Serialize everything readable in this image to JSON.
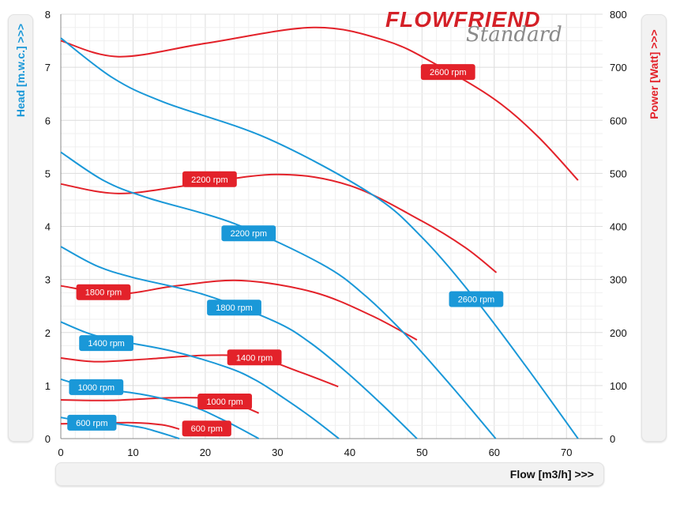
{
  "logo": {
    "text_main": "FLOWFRIEND",
    "text_sub": "Standard"
  },
  "chart_data": {
    "type": "line",
    "title": "",
    "xlabel": "Flow [m3/h] >>>",
    "ylabel": "Head [m.w.c.] >>>",
    "y2label": "Power [Watt] >>>",
    "xlim": [
      0,
      75
    ],
    "ylim": [
      0,
      8
    ],
    "y2lim": [
      0,
      800
    ],
    "xticks": [
      0,
      10,
      20,
      30,
      40,
      50,
      60,
      70
    ],
    "yticks": [
      0,
      1,
      2,
      3,
      4,
      5,
      6,
      7,
      8
    ],
    "y2ticks": [
      0,
      100,
      200,
      300,
      400,
      500,
      600,
      700,
      800
    ],
    "grid": true,
    "colors": {
      "head": "#1a98d8",
      "power": "#e3222a"
    },
    "head_series": [
      {
        "name": "2600 rpm",
        "label_at": [
          57.5,
          2.63
        ],
        "points": [
          [
            0,
            7.55
          ],
          [
            7.2,
            6.8
          ],
          [
            14.3,
            6.34
          ],
          [
            28.6,
            5.66
          ],
          [
            43,
            4.61
          ],
          [
            50.1,
            3.78
          ],
          [
            57.3,
            2.64
          ],
          [
            64.4,
            1.36
          ],
          [
            71.6,
            0
          ]
        ]
      },
      {
        "name": "2200 rpm",
        "label_at": [
          26,
          3.87
        ],
        "points": [
          [
            0,
            5.4
          ],
          [
            6,
            4.86
          ],
          [
            12,
            4.54
          ],
          [
            24.1,
            4.05
          ],
          [
            36.1,
            3.29
          ],
          [
            42.1,
            2.7
          ],
          [
            48.2,
            1.89
          ],
          [
            54.2,
            0.97
          ],
          [
            60.2,
            0
          ]
        ]
      },
      {
        "name": "1800 rpm",
        "label_at": [
          24,
          2.47
        ],
        "points": [
          [
            0,
            3.62
          ],
          [
            4.9,
            3.26
          ],
          [
            9.9,
            3.04
          ],
          [
            19.7,
            2.72
          ],
          [
            29.6,
            2.21
          ],
          [
            34.5,
            1.81
          ],
          [
            39.4,
            1.27
          ],
          [
            44.4,
            0.65
          ],
          [
            49.3,
            0
          ]
        ]
      },
      {
        "name": "1400 rpm",
        "label_at": [
          6.3,
          1.8
        ],
        "points": [
          [
            0,
            2.2
          ],
          [
            3.9,
            1.98
          ],
          [
            7.7,
            1.85
          ],
          [
            15.4,
            1.65
          ],
          [
            23.1,
            1.34
          ],
          [
            27,
            1.1
          ],
          [
            30.8,
            0.77
          ],
          [
            34.7,
            0.4
          ],
          [
            38.5,
            0
          ]
        ]
      },
      {
        "name": "1000 rpm",
        "label_at": [
          4.9,
          0.97
        ],
        "points": [
          [
            0,
            1.12
          ],
          [
            2.7,
            1.01
          ],
          [
            5.5,
            0.94
          ],
          [
            11,
            0.84
          ],
          [
            16.4,
            0.68
          ],
          [
            19.2,
            0.56
          ],
          [
            21.9,
            0.39
          ],
          [
            24.7,
            0.2
          ],
          [
            27.4,
            0
          ]
        ]
      },
      {
        "name": "600 rpm",
        "label_at": [
          4.3,
          0.3
        ],
        "points": [
          [
            0,
            0.4
          ],
          [
            1.6,
            0.36
          ],
          [
            3.3,
            0.34
          ],
          [
            6.6,
            0.3
          ],
          [
            9.8,
            0.24
          ],
          [
            11.5,
            0.2
          ],
          [
            13.1,
            0.14
          ],
          [
            14.8,
            0.07
          ],
          [
            16.4,
            0
          ]
        ]
      }
    ],
    "power_series": [
      {
        "name": "2600 rpm",
        "label_at": [
          53.6,
          691
        ],
        "points": [
          [
            0,
            750
          ],
          [
            8,
            720
          ],
          [
            20,
            745
          ],
          [
            35,
            775
          ],
          [
            45,
            750
          ],
          [
            52,
            705
          ],
          [
            60,
            640
          ],
          [
            66,
            570
          ],
          [
            71.6,
            487
          ]
        ]
      },
      {
        "name": "2200 rpm",
        "label_at": [
          20.6,
          489
        ],
        "points": [
          [
            0,
            480
          ],
          [
            8,
            462
          ],
          [
            18,
            478
          ],
          [
            30,
            498
          ],
          [
            40,
            477
          ],
          [
            50,
            410
          ],
          [
            56,
            360
          ],
          [
            60.3,
            313
          ]
        ]
      },
      {
        "name": "1800 rpm",
        "label_at": [
          5.9,
          276
        ],
        "points": [
          [
            0,
            288
          ],
          [
            8,
            273
          ],
          [
            16,
            288
          ],
          [
            25,
            298
          ],
          [
            35,
            276
          ],
          [
            43,
            232
          ],
          [
            49.3,
            186
          ]
        ]
      },
      {
        "name": "1400 rpm",
        "label_at": [
          26.8,
          153
        ],
        "points": [
          [
            0,
            152
          ],
          [
            5,
            145
          ],
          [
            12,
            150
          ],
          [
            20,
            157
          ],
          [
            27,
            153
          ],
          [
            33,
            126
          ],
          [
            38.4,
            98
          ]
        ]
      },
      {
        "name": "1000 rpm",
        "label_at": [
          22.7,
          70
        ],
        "points": [
          [
            0,
            73
          ],
          [
            7,
            72
          ],
          [
            15,
            77
          ],
          [
            22,
            75
          ],
          [
            25,
            62
          ],
          [
            27.4,
            48
          ]
        ]
      },
      {
        "name": "600 rpm",
        "label_at": [
          20.2,
          19
        ],
        "points": [
          [
            0,
            28
          ],
          [
            5,
            29
          ],
          [
            10,
            30
          ],
          [
            14,
            26
          ],
          [
            16.4,
            18
          ]
        ]
      }
    ]
  }
}
